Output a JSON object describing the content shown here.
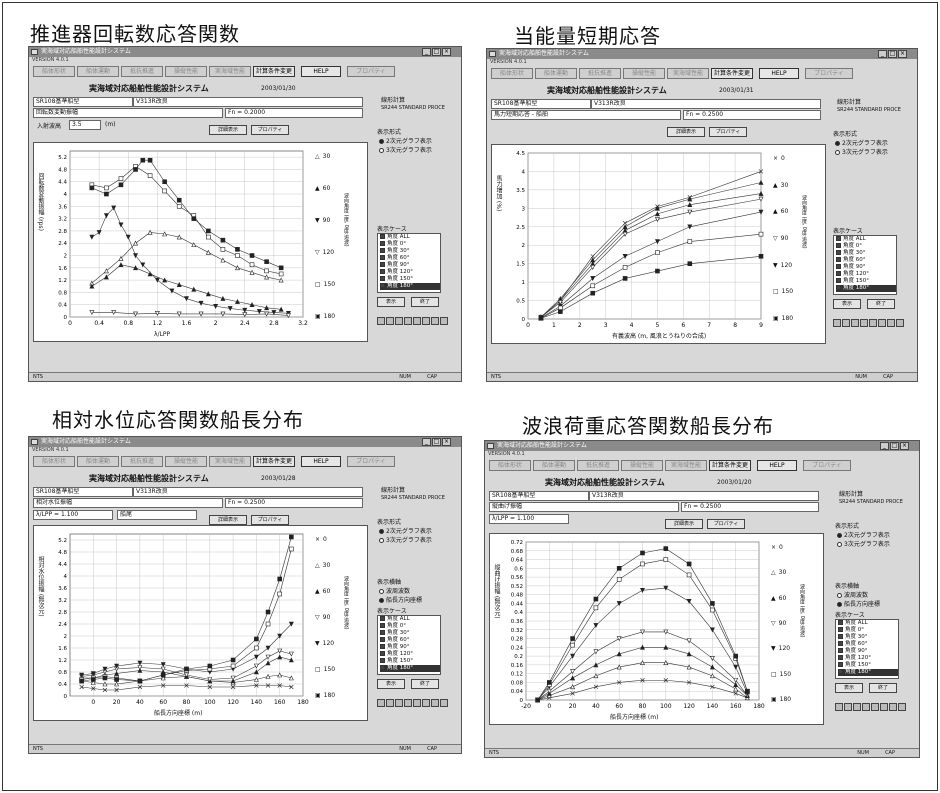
{
  "headings": [
    "推進器回転数応答関数",
    "当能量短期応答",
    "相対水位応答関数船長分布",
    "波浪荷重応答関数船長分布"
  ],
  "common": {
    "window_title": "実海域対応船舶性能設計システム",
    "version": "VERSION 4.0.1",
    "toolbar": [
      "船体形状",
      "船体運動",
      "抵抗推進",
      "操縦性能",
      "実海域性能",
      "計算条件変更",
      "HELP",
      "プロパティ"
    ],
    "app_title": "実海域対応船舶性能設計システム",
    "ship_field": "SR108基準船型",
    "model_field": "V313R改良",
    "sub_field": "SR244 STANDARD PROCE",
    "calc_label": "線形計算",
    "display_format_label": "表示形式",
    "format_2d": "2次元グラフ表示",
    "format_3d": "3次元グラフ表示",
    "case_label": "表示ケース",
    "case_list": [
      "角度 ALL",
      "角度 0°",
      "角度 30°",
      "角度 60°",
      "角度 90°",
      "角度 120°",
      "角度 150°",
      "角度 180°"
    ],
    "show_button": "表示",
    "end_button": "終了",
    "detail_button": "詳細表示",
    "prop_button": "プロパティ",
    "axis_kind_label": "表示横軸",
    "axis_opt1": "波周波数",
    "axis_opt2": "船長方向座標",
    "side_ylabel": "波向角度 (度, 0度:追波)",
    "status_left": "NTS",
    "status_mid": "NUM",
    "status_right": "CAP"
  },
  "windows": [
    {
      "date": "2003/01/30",
      "row1_label": "回転数変動振幅",
      "fn_field": "Fn = 0.2000",
      "input_label": "入射波高",
      "input_value": "3.5",
      "input_unit": "(m)",
      "ylabel": "回転数変動振幅 (rps)",
      "xlabel": "λ/LPP",
      "legend": [
        "30",
        "60",
        "90",
        "120",
        "150",
        "180"
      ],
      "legend_marks": [
        "△",
        "▲",
        "▼",
        "▽",
        "□",
        "▣"
      ]
    },
    {
      "date": "2003/01/31",
      "row1_label": "馬力短期応答 - 船舶",
      "fn_field": "Fn = 0.2500",
      "ylabel": "馬力増加 (%)",
      "xlabel": "有義波高 (m, 風浪とうねりの合成)",
      "legend": [
        "0",
        "30",
        "60",
        "90",
        "120",
        "150",
        "180"
      ],
      "legend_marks": [
        "×",
        "▲",
        "▲",
        "▽",
        "▼",
        "□",
        "▣"
      ]
    },
    {
      "date": "2003/01/28",
      "row1_label": "相対水位振幅",
      "fn_field": "Fn = 0.2500",
      "sel_field": "λ/LPP = 1.100",
      "pos_field": "船尾",
      "ylabel": "相対水位振幅 (無次元)",
      "xlabel": "船長方向座標 (m)",
      "legend": [
        "0",
        "30",
        "60",
        "90",
        "120",
        "150",
        "180"
      ],
      "legend_marks": [
        "×",
        "△",
        "▲",
        "▽",
        "▼",
        "□",
        "▣"
      ]
    },
    {
      "date": "2003/01/20",
      "row1_label": "縦曲げ振幅",
      "fn_field": "Fn = 0.2500",
      "sel_field": "λ/LPP = 1.100",
      "ylabel": "縦曲げ振幅 (無次元)",
      "xlabel": "船長方向座標 (m)",
      "legend": [
        "0",
        "30",
        "60",
        "90",
        "120",
        "150",
        "180"
      ],
      "legend_marks": [
        "×",
        "△",
        "▲",
        "▽",
        "▼",
        "□",
        "▣"
      ]
    }
  ],
  "chart_data": [
    {
      "type": "line",
      "xlabel": "λ/LPP",
      "ylabel": "回転数変動振幅 (rps)",
      "xlim": [
        0,
        3.2
      ],
      "ylim": [
        0,
        5.4
      ],
      "xticks": [
        0.0,
        0.4,
        0.8,
        1.2,
        1.6,
        2.0,
        2.4,
        2.8,
        3.2
      ],
      "yticks": [
        0.0,
        0.4,
        0.8,
        1.2,
        1.6,
        2.0,
        2.4,
        2.8,
        3.2,
        3.6,
        4.0,
        4.4,
        4.8,
        5.2
      ],
      "series": [
        {
          "name": "30",
          "marker": "tri",
          "x": [
            0.3,
            0.5,
            0.7,
            0.9,
            1.1,
            1.3,
            1.5,
            1.7,
            1.9,
            2.1,
            2.3,
            2.5,
            2.7,
            2.9
          ],
          "y": [
            1.1,
            1.5,
            1.9,
            2.4,
            2.75,
            2.7,
            2.6,
            2.35,
            2.1,
            1.85,
            1.6,
            1.45,
            1.3,
            1.2
          ]
        },
        {
          "name": "60",
          "marker": "tri-f",
          "x": [
            0.3,
            0.5,
            0.7,
            0.9,
            1.1,
            1.3,
            1.5,
            1.7,
            1.9,
            2.1,
            2.3,
            2.5,
            2.7,
            2.9
          ],
          "y": [
            1.0,
            1.3,
            1.7,
            1.6,
            1.4,
            1.2,
            1.05,
            0.9,
            0.75,
            0.6,
            0.5,
            0.4,
            0.3,
            0.25
          ]
        },
        {
          "name": "90",
          "marker": "tri-d-f",
          "x": [
            0.3,
            0.4,
            0.5,
            0.6,
            0.7,
            0.8,
            0.9,
            1.0,
            1.2,
            1.4,
            1.6,
            1.8,
            2.0,
            2.2,
            2.4,
            2.6,
            2.8,
            3.0
          ],
          "y": [
            2.6,
            2.75,
            3.3,
            3.55,
            3.0,
            2.6,
            2.0,
            1.7,
            1.2,
            0.85,
            0.6,
            0.45,
            0.35,
            0.28,
            0.22,
            0.18,
            0.15,
            0.12
          ]
        },
        {
          "name": "120",
          "marker": "tri-d",
          "x": [
            0.3,
            0.6,
            0.9,
            1.2,
            1.5,
            1.8,
            2.1,
            2.4,
            2.7,
            3.0
          ],
          "y": [
            0.15,
            0.15,
            0.1,
            0.12,
            0.1,
            0.1,
            0.1,
            0.08,
            0.1,
            0.05
          ]
        },
        {
          "name": "150",
          "marker": "sq",
          "x": [
            0.3,
            0.5,
            0.7,
            0.9,
            1.1,
            1.3,
            1.5,
            1.7,
            1.9,
            2.1,
            2.3,
            2.5,
            2.7,
            2.9
          ],
          "y": [
            4.3,
            4.2,
            4.5,
            4.9,
            4.6,
            4.1,
            3.6,
            3.3,
            2.6,
            2.2,
            2.0,
            1.7,
            1.5,
            1.4
          ]
        },
        {
          "name": "180",
          "marker": "sq-f",
          "x": [
            0.3,
            0.5,
            0.7,
            0.9,
            1.0,
            1.1,
            1.3,
            1.5,
            1.7,
            1.9,
            2.1,
            2.3,
            2.5,
            2.7,
            2.9
          ],
          "y": [
            4.2,
            4.0,
            4.3,
            4.8,
            5.1,
            5.1,
            4.4,
            3.8,
            3.2,
            2.8,
            2.5,
            2.2,
            2.0,
            1.8,
            1.6
          ]
        }
      ]
    },
    {
      "type": "line",
      "xlabel": "有義波高 (m, 風浪とうねりの合成)",
      "ylabel": "馬力増加 (%)",
      "xlim": [
        0,
        9
      ],
      "ylim": [
        0,
        4.5
      ],
      "xticks": [
        0,
        1,
        2,
        3,
        4,
        5,
        6,
        7,
        8,
        9
      ],
      "yticks": [
        0.0,
        0.5,
        1.0,
        1.5,
        2.0,
        2.5,
        3.0,
        3.5,
        4.0,
        4.5
      ],
      "series": [
        {
          "name": "0",
          "marker": "x",
          "x": [
            0.5,
            1.25,
            2.5,
            3.75,
            5,
            6.25,
            9
          ],
          "y": [
            0.05,
            0.5,
            1.7,
            2.6,
            3.05,
            3.3,
            4.0
          ]
        },
        {
          "name": "30",
          "marker": "tri-f",
          "x": [
            0.5,
            1.25,
            2.5,
            3.75,
            5,
            6.25,
            9
          ],
          "y": [
            0.05,
            0.55,
            1.6,
            2.5,
            3.0,
            3.25,
            3.7
          ]
        },
        {
          "name": "60",
          "marker": "tri-f",
          "x": [
            0.5,
            1.25,
            2.5,
            3.75,
            5,
            6.25,
            9
          ],
          "y": [
            0.05,
            0.5,
            1.5,
            2.4,
            2.85,
            3.1,
            3.4
          ]
        },
        {
          "name": "90",
          "marker": "tri-d",
          "x": [
            0.5,
            1.25,
            2.5,
            3.75,
            5,
            6.25,
            9
          ],
          "y": [
            0.05,
            0.45,
            1.4,
            2.3,
            2.7,
            2.9,
            3.25
          ]
        },
        {
          "name": "120",
          "marker": "tri-d-f",
          "x": [
            0.5,
            1.25,
            2.5,
            3.75,
            5,
            6.25,
            9
          ],
          "y": [
            0.03,
            0.35,
            1.1,
            1.7,
            2.1,
            2.5,
            2.9
          ]
        },
        {
          "name": "150",
          "marker": "sq",
          "x": [
            0.5,
            1.25,
            2.5,
            3.75,
            5,
            6.25,
            9
          ],
          "y": [
            0.02,
            0.3,
            0.9,
            1.4,
            1.8,
            2.1,
            2.3
          ]
        },
        {
          "name": "180",
          "marker": "sq-f",
          "x": [
            0.5,
            1.25,
            2.5,
            3.75,
            5,
            6.25,
            9
          ],
          "y": [
            0.02,
            0.2,
            0.7,
            1.1,
            1.3,
            1.5,
            1.7
          ]
        }
      ]
    },
    {
      "type": "line",
      "xlabel": "船長方向座標 (m)",
      "ylabel": "相対水位振幅 (無次元)",
      "xlim": [
        -20,
        180
      ],
      "ylim": [
        0,
        5.4
      ],
      "xticks": [
        0,
        20,
        40,
        60,
        80,
        100,
        120,
        140,
        160,
        180
      ],
      "yticks": [
        0.0,
        0.4,
        0.8,
        1.2,
        1.6,
        2.0,
        2.4,
        2.8,
        3.2,
        3.6,
        4.0,
        4.4,
        4.8,
        5.2
      ],
      "series": [
        {
          "name": "0",
          "marker": "x",
          "x": [
            -10,
            0,
            10,
            20,
            40,
            60,
            80,
            100,
            120,
            140,
            150,
            160,
            170
          ],
          "y": [
            0.3,
            0.25,
            0.2,
            0.2,
            0.3,
            0.35,
            0.35,
            0.3,
            0.3,
            0.35,
            0.35,
            0.35,
            0.3
          ]
        },
        {
          "name": "30",
          "marker": "tri",
          "x": [
            -10,
            0,
            10,
            20,
            40,
            60,
            80,
            100,
            120,
            140,
            150,
            160,
            170
          ],
          "y": [
            0.5,
            0.45,
            0.4,
            0.4,
            0.5,
            0.6,
            0.65,
            0.5,
            0.45,
            0.55,
            0.65,
            0.7,
            0.6
          ]
        },
        {
          "name": "60",
          "marker": "tri-f",
          "x": [
            -10,
            0,
            10,
            20,
            40,
            60,
            80,
            100,
            120,
            140,
            150,
            160,
            170
          ],
          "y": [
            0.6,
            0.6,
            0.7,
            0.75,
            0.85,
            0.8,
            0.65,
            0.5,
            0.5,
            0.8,
            1.1,
            1.3,
            1.2
          ]
        },
        {
          "name": "90",
          "marker": "tri-d",
          "x": [
            -10,
            0,
            10,
            20,
            40,
            60,
            80,
            100,
            120,
            140,
            150,
            160,
            170
          ],
          "y": [
            0.65,
            0.7,
            0.8,
            0.9,
            0.95,
            0.9,
            0.7,
            0.55,
            0.6,
            1.0,
            1.3,
            1.5,
            1.4
          ]
        },
        {
          "name": "120",
          "marker": "tri-d-f",
          "x": [
            -10,
            0,
            10,
            20,
            40,
            60,
            80,
            100,
            120,
            140,
            150,
            160,
            170
          ],
          "y": [
            0.7,
            0.75,
            0.9,
            1.0,
            1.1,
            1.05,
            0.9,
            0.8,
            0.9,
            1.3,
            1.6,
            2.0,
            2.4
          ]
        },
        {
          "name": "150",
          "marker": "sq",
          "x": [
            -10,
            0,
            10,
            20,
            40,
            60,
            80,
            100,
            120,
            140,
            150,
            160,
            170
          ],
          "y": [
            0.55,
            0.6,
            0.65,
            0.6,
            0.5,
            0.7,
            0.85,
            0.9,
            1.0,
            1.6,
            2.4,
            3.4,
            4.9
          ]
        },
        {
          "name": "180",
          "marker": "sq-f",
          "x": [
            -10,
            0,
            10,
            20,
            40,
            60,
            80,
            100,
            120,
            140,
            150,
            160,
            170
          ],
          "y": [
            0.5,
            0.55,
            0.6,
            0.55,
            0.5,
            0.7,
            0.9,
            1.0,
            1.2,
            1.9,
            2.8,
            3.9,
            5.3
          ]
        }
      ]
    },
    {
      "type": "line",
      "xlabel": "船長方向座標 (m)",
      "ylabel": "縦曲げ振幅 (無次元)",
      "xlim": [
        -20,
        180
      ],
      "ylim": [
        0,
        0.72
      ],
      "xticks": [
        -20,
        0,
        20,
        40,
        60,
        80,
        100,
        120,
        140,
        160,
        180
      ],
      "yticks": [
        0.0,
        0.04,
        0.08,
        0.12,
        0.16,
        0.2,
        0.24,
        0.28,
        0.32,
        0.36,
        0.4,
        0.44,
        0.48,
        0.52,
        0.56,
        0.6,
        0.64,
        0.68,
        0.72
      ],
      "series": [
        {
          "name": "0",
          "marker": "x",
          "x": [
            -10,
            0,
            20,
            40,
            60,
            80,
            100,
            120,
            140,
            160,
            170
          ],
          "y": [
            0.0,
            0.01,
            0.03,
            0.06,
            0.08,
            0.09,
            0.09,
            0.08,
            0.06,
            0.03,
            0.01
          ]
        },
        {
          "name": "30",
          "marker": "tri",
          "x": [
            -10,
            0,
            20,
            40,
            60,
            80,
            100,
            120,
            140,
            160,
            170
          ],
          "y": [
            0.0,
            0.02,
            0.06,
            0.11,
            0.15,
            0.17,
            0.17,
            0.15,
            0.11,
            0.05,
            0.01
          ]
        },
        {
          "name": "60",
          "marker": "tri-f",
          "x": [
            -10,
            0,
            20,
            40,
            60,
            80,
            100,
            120,
            140,
            160,
            170
          ],
          "y": [
            0.0,
            0.03,
            0.1,
            0.16,
            0.21,
            0.24,
            0.24,
            0.21,
            0.15,
            0.07,
            0.02
          ]
        },
        {
          "name": "90",
          "marker": "tri-d",
          "x": [
            -10,
            0,
            20,
            40,
            60,
            80,
            100,
            120,
            140,
            160,
            170
          ],
          "y": [
            0.0,
            0.04,
            0.13,
            0.22,
            0.28,
            0.31,
            0.31,
            0.27,
            0.19,
            0.09,
            0.02
          ]
        },
        {
          "name": "120",
          "marker": "tri-d-f",
          "x": [
            -10,
            0,
            20,
            40,
            60,
            80,
            100,
            120,
            140,
            160,
            170
          ],
          "y": [
            0.0,
            0.06,
            0.2,
            0.34,
            0.44,
            0.5,
            0.51,
            0.45,
            0.32,
            0.15,
            0.03
          ]
        },
        {
          "name": "150",
          "marker": "sq",
          "x": [
            -10,
            0,
            20,
            40,
            60,
            80,
            100,
            120,
            140,
            160,
            170
          ],
          "y": [
            0.0,
            0.07,
            0.25,
            0.42,
            0.55,
            0.62,
            0.64,
            0.57,
            0.41,
            0.19,
            0.04
          ]
        },
        {
          "name": "180",
          "marker": "sq-f",
          "x": [
            -10,
            0,
            20,
            40,
            60,
            80,
            100,
            120,
            140,
            160,
            170
          ],
          "y": [
            0.0,
            0.08,
            0.28,
            0.46,
            0.6,
            0.67,
            0.69,
            0.62,
            0.44,
            0.2,
            0.04
          ]
        }
      ]
    }
  ]
}
